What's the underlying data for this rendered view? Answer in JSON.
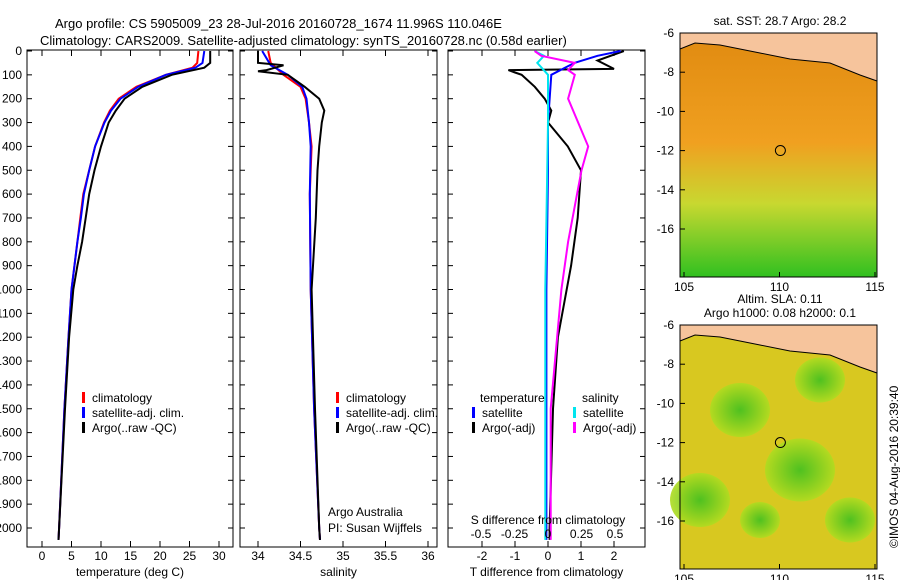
{
  "header": {
    "title1": "Argo profile: CS 5905009_23 28-Jul-2016 20160728_1674 11.996S 110.046E",
    "title2": "Climatology: CARS2009. Satellite-adjusted climatology: synTS_20160728.nc (0.58d earlier)"
  },
  "credit": "©IMOS 04-Aug-2016 20:39:40",
  "colors": {
    "climatology": "#ff0000",
    "satellite": "#0000ff",
    "argo": "#000000",
    "sat_s": "#00e5ee",
    "argo_s": "#ff00ff"
  },
  "chart_data": [
    {
      "type": "line",
      "name": "temperature",
      "xlabel": "temperature (deg C)",
      "xlim": [
        -1,
        31
      ],
      "xticks": [
        0,
        5,
        10,
        15,
        20,
        25,
        30
      ],
      "ylim": [
        2060,
        0
      ],
      "yticks": [
        0,
        100,
        200,
        300,
        400,
        500,
        600,
        700,
        800,
        900,
        1000,
        1100,
        1200,
        1300,
        1400,
        1500,
        1600,
        1700,
        1800,
        1900,
        2000
      ],
      "legend": [
        "climatology",
        "satellite-adj. clim.",
        "Argo(..raw -QC)"
      ],
      "series": [
        {
          "name": "climatology",
          "depth": [
            0,
            50,
            70,
            100,
            150,
            200,
            250,
            300,
            400,
            500,
            600,
            700,
            800,
            1000,
            1200,
            1500,
            2000,
            2050
          ],
          "values": [
            26.5,
            26.3,
            25.5,
            21,
            16,
            13,
            11.5,
            10.5,
            9,
            8,
            7,
            6.5,
            6,
            5,
            4.5,
            3.8,
            2.9,
            2.8
          ]
        },
        {
          "name": "satellite",
          "depth": [
            0,
            50,
            70,
            100,
            150,
            200,
            250,
            300,
            400,
            500,
            600,
            700,
            800,
            1000,
            1200,
            1500,
            2000,
            2050
          ],
          "values": [
            27.5,
            27.2,
            26,
            21,
            16.3,
            13.3,
            11.7,
            10.6,
            9,
            8,
            7.1,
            6.6,
            6,
            5,
            4.5,
            3.8,
            2.9,
            2.8
          ]
        },
        {
          "name": "argo",
          "depth": [
            0,
            50,
            70,
            100,
            150,
            200,
            250,
            300,
            400,
            500,
            600,
            700,
            800,
            900,
            1000,
            1200,
            1500,
            2000,
            2050
          ],
          "values": [
            28.5,
            28.5,
            27.5,
            22,
            17,
            14,
            12.5,
            11.3,
            10,
            8.9,
            8,
            7.4,
            6.8,
            6,
            5.3,
            4.6,
            3.9,
            2.9,
            2.8
          ]
        }
      ]
    },
    {
      "type": "line",
      "name": "salinity",
      "xlabel": "salinity",
      "xlim": [
        33.8,
        36.1
      ],
      "xticks": [
        34,
        34.5,
        35,
        35.5,
        36
      ],
      "ylim": [
        2060,
        0
      ],
      "legend": [
        "climatology",
        "satellite-adj. clim.",
        "Argo(..raw -QC)"
      ],
      "annotation": [
        "Argo Australia",
        "PI: Susan Wijffels"
      ],
      "series": [
        {
          "name": "climatology",
          "depth": [
            0,
            50,
            100,
            150,
            200,
            300,
            400,
            600,
            1000,
            1500,
            2000,
            2050
          ],
          "values": [
            34.12,
            34.15,
            34.3,
            34.5,
            34.56,
            34.6,
            34.63,
            34.61,
            34.62,
            34.66,
            34.72,
            34.73
          ]
        },
        {
          "name": "satellite",
          "depth": [
            0,
            30,
            60,
            100,
            150,
            200,
            300,
            400,
            600,
            1000,
            1500,
            2000,
            2050
          ],
          "values": [
            34.05,
            34.1,
            34.15,
            34.35,
            34.52,
            34.57,
            34.6,
            34.62,
            34.61,
            34.62,
            34.66,
            34.72,
            34.73
          ]
        },
        {
          "name": "argo",
          "depth": [
            0,
            50,
            60,
            80,
            85,
            100,
            150,
            200,
            250,
            300,
            400,
            500,
            700,
            1000,
            1500,
            2000,
            2050
          ],
          "values": [
            34.0,
            34.0,
            34.3,
            34.1,
            34.0,
            34.35,
            34.55,
            34.72,
            34.78,
            34.75,
            34.72,
            34.7,
            34.68,
            34.63,
            34.67,
            34.72,
            34.73
          ]
        }
      ]
    },
    {
      "type": "line",
      "name": "differences",
      "xlabel": "T difference from climatology",
      "xlabel2": "S difference from climatology",
      "xlim": [
        -3,
        2.9
      ],
      "xticks": [
        -2,
        -1,
        0,
        1,
        2
      ],
      "xticks2": [
        -0.5,
        -0.25,
        0,
        0.25,
        0.5
      ],
      "ylim": [
        2060,
        0
      ],
      "legend_t": [
        "temperature",
        "satellite",
        "Argo(-adj)"
      ],
      "legend_s": [
        "salinity",
        "satellite",
        "Argo(-adj)"
      ],
      "series": [
        {
          "name": "T argo",
          "depth": [
            0,
            40,
            75,
            80,
            90,
            100,
            150,
            200,
            250,
            300,
            400,
            500,
            700,
            900,
            1200,
            1500,
            2000,
            2050
          ],
          "values": [
            2.3,
            1.5,
            2.0,
            -1.2,
            -1,
            -0.8,
            -0.4,
            -0.1,
            0.1,
            0,
            0.6,
            1.0,
            0.9,
            0.7,
            0.3,
            0.15,
            0.05,
            0.05
          ]
        },
        {
          "name": "T satellite",
          "depth": [
            0,
            20,
            50,
            100,
            300,
            500,
            1000,
            1500,
            2000,
            2050
          ],
          "values": [
            2.2,
            1.5,
            0.8,
            0.1,
            0,
            0,
            -0.05,
            -0.05,
            -0.05,
            -0.05
          ]
        },
        {
          "name": "S satellite",
          "depth": [
            0,
            20,
            50,
            100,
            300,
            1000,
            1500,
            2000,
            2050
          ],
          "values": [
            -0.1,
            -0.03,
            -0.08,
            0,
            0,
            -0.02,
            -0.02,
            -0.02,
            -0.02
          ]
        },
        {
          "name": "S argo",
          "depth": [
            0,
            20,
            50,
            80,
            100,
            200,
            400,
            500,
            800,
            1000,
            1500,
            2000,
            2050
          ],
          "values": [
            -0.1,
            -0.05,
            0.2,
            0.15,
            0.2,
            0.15,
            0.3,
            0.25,
            0.15,
            0.1,
            0.02,
            0.02,
            0.02
          ]
        }
      ]
    },
    {
      "type": "heatmap",
      "name": "sst-map",
      "title": "sat. SST: 28.7 Argo: 28.2",
      "xticks": [
        105,
        110,
        115
      ],
      "yticks": [
        -6,
        -8,
        -10,
        -12,
        -14,
        -16
      ],
      "argo_position": [
        110.046,
        -11.996
      ]
    },
    {
      "type": "heatmap",
      "name": "sla-map",
      "title": "Altim. SLA: 0.11",
      "title2": "Argo h1000: 0.08 h2000: 0.1",
      "xticks": [
        105,
        110,
        115
      ],
      "yticks": [
        -6,
        -8,
        -10,
        -12,
        -14,
        -16
      ],
      "argo_position": [
        110.046,
        -11.996
      ]
    }
  ]
}
